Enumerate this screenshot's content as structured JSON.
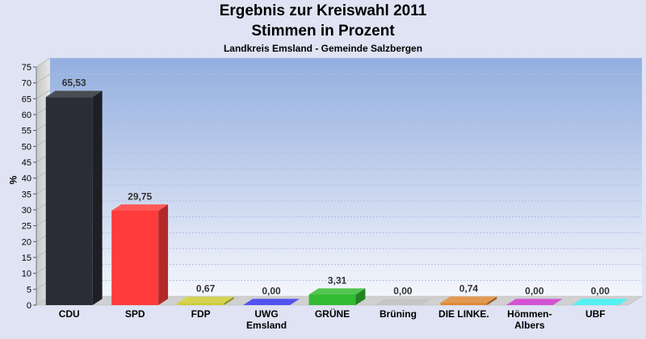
{
  "header": {
    "title": "Ergebnis zur Kreiswahl 2011",
    "subtitle": "Stimmen in Prozent",
    "region": "Landkreis Emsland - Gemeinde Salzbergen"
  },
  "chart_data": {
    "type": "bar",
    "title": "Ergebnis zur Kreiswahl 2011",
    "subtitle": "Stimmen in Prozent",
    "xlabel": "",
    "ylabel": "%",
    "ylim": [
      0,
      75
    ],
    "ytick_step": 5,
    "yticks": [
      "0",
      "5",
      "10",
      "15",
      "20",
      "25",
      "30",
      "35",
      "40",
      "45",
      "50",
      "55",
      "60",
      "65",
      "70",
      "75"
    ],
    "grid": true,
    "categories": [
      [
        "CDU"
      ],
      [
        "SPD"
      ],
      [
        "FDP"
      ],
      [
        "UWG",
        "Emsland"
      ],
      [
        "GRÜNE"
      ],
      [
        "Brüning"
      ],
      [
        "DIE LINKE."
      ],
      [
        "Hömmen-",
        "Albers"
      ],
      [
        "UBF"
      ]
    ],
    "values": [
      65.53,
      29.75,
      0.67,
      0.0,
      3.31,
      0.0,
      0.74,
      0.0,
      0.0
    ],
    "value_labels": [
      "65,53",
      "29,75",
      "0,67",
      "0,00",
      "3,31",
      "0,00",
      "0,74",
      "0,00",
      "0,00"
    ],
    "colors": [
      "#2a2d35",
      "#ff3b3b",
      "#cccc33",
      "#3333ee",
      "#33bb33",
      "#bbbbbb",
      "#dd8833",
      "#cc33cc",
      "#33eeee"
    ]
  }
}
